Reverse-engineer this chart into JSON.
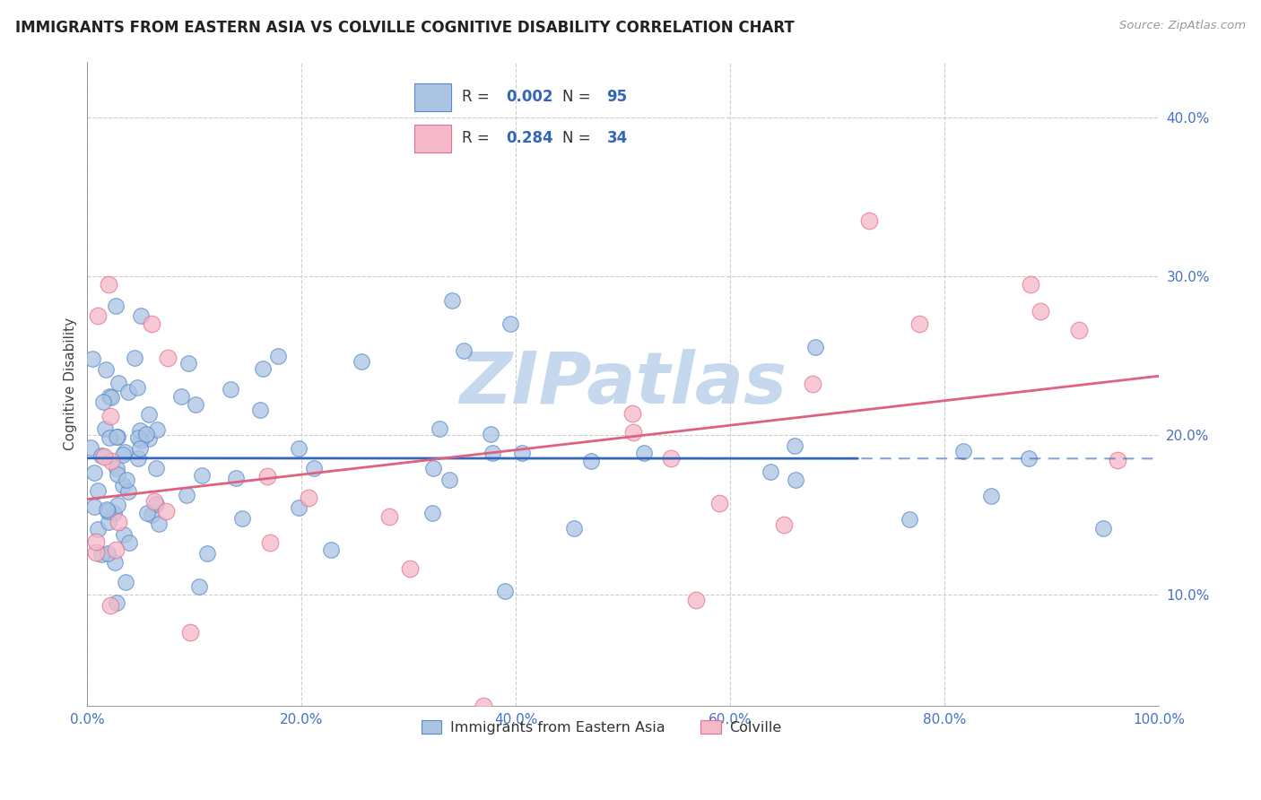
{
  "title": "IMMIGRANTS FROM EASTERN ASIA VS COLVILLE COGNITIVE DISABILITY CORRELATION CHART",
  "source": "Source: ZipAtlas.com",
  "ylabel": "Cognitive Disability",
  "xlim": [
    0.0,
    1.0
  ],
  "ylim": [
    0.03,
    0.435
  ],
  "xticks": [
    0.0,
    0.2,
    0.4,
    0.6,
    0.8,
    1.0
  ],
  "yticks": [
    0.1,
    0.2,
    0.3,
    0.4
  ],
  "legend_labels": [
    "Immigrants from Eastern Asia",
    "Colville"
  ],
  "blue_R": "0.002",
  "blue_N": "95",
  "pink_R": "0.284",
  "pink_N": "34",
  "blue_color": "#aac4e2",
  "pink_color": "#f5b8c8",
  "blue_edge_color": "#5588cc",
  "pink_edge_color": "#e07090",
  "blue_line_color": "#3366bb",
  "pink_line_color": "#e06080",
  "watermark": "ZIPatlas",
  "watermark_color": "#c5d8ee",
  "grid_color": "#cccccc",
  "title_color": "#222222",
  "source_color": "#999999",
  "axis_color": "#888888",
  "tick_color": "#4472c4",
  "ylabel_color": "#444444"
}
